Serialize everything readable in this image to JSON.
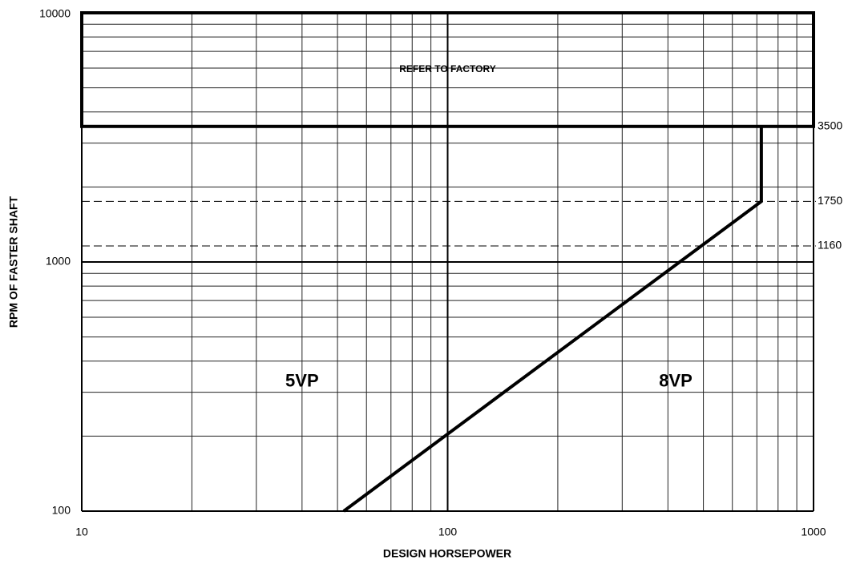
{
  "chart_data": {
    "type": "line",
    "xlabel": "DESIGN HORSEPOWER",
    "ylabel": "RPM OF FASTER SHAFT",
    "xscale": "log",
    "yscale": "log",
    "xlim": [
      10,
      1000
    ],
    "ylim": [
      100,
      10000
    ],
    "xticks": [
      10,
      100,
      1000
    ],
    "yticks": [
      100,
      1000,
      10000
    ],
    "xminorticks": [
      20,
      30,
      40,
      50,
      60,
      70,
      80,
      90,
      200,
      300,
      400,
      500,
      600,
      700,
      800,
      900
    ],
    "yminorticks": [
      200,
      300,
      400,
      500,
      600,
      700,
      800,
      900,
      2000,
      3000,
      4000,
      5000,
      6000,
      7000,
      8000,
      9000
    ],
    "y2lim": [
      100,
      10000
    ],
    "y2ticks": [
      3500,
      1750,
      1160
    ],
    "grid": true,
    "series": [
      {
        "color": "#000000",
        "x": [
          52,
          720,
          720
        ],
        "values": [
          100,
          1750,
          3500
        ]
      }
    ],
    "region": {
      "text": "REFER TO FACTORY",
      "ylim": [
        3500,
        10000
      ]
    },
    "annotations": [
      {
        "text": "5VP",
        "x": 40,
        "y": 330
      },
      {
        "text": "8VP",
        "x": 420,
        "y": 330
      }
    ]
  }
}
